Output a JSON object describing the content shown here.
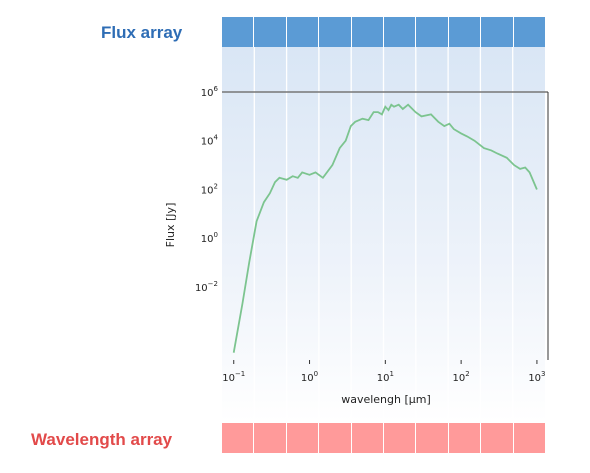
{
  "flux_label": "Flux array",
  "wavelength_label": "Wavelength array",
  "colors": {
    "flux_accent": "#2e6db5",
    "flux_cells": "#5b9bd5",
    "wavelength_accent": "#e24a4a",
    "wavelength_cells": "#ff9a9a",
    "curve": "#7cc48f"
  },
  "flux_array_cells": 10,
  "wavelength_array_cells": 10,
  "chart_data": {
    "type": "line",
    "xscale": "log",
    "yscale": "log",
    "xlim": [
      0.07,
      1400
    ],
    "ylim": [
      1e-05,
      1000000
    ],
    "xlabel": "wavelengh [μm]",
    "ylabel": "Flux [Jy]",
    "x_ticks": [
      "10^-1",
      "10^0",
      "10^1",
      "10^2",
      "10^3"
    ],
    "y_ticks": [
      "10^-2",
      "10^0",
      "10^2",
      "10^4",
      "10^6"
    ],
    "series": [
      {
        "x": [
          0.1,
          0.13,
          0.16,
          0.2,
          0.25,
          0.3,
          0.35,
          0.4,
          0.5,
          0.6,
          0.7,
          0.8,
          1.0,
          1.2,
          1.5,
          2,
          2.5,
          3,
          3.5,
          4,
          5,
          6,
          7,
          8,
          9,
          10,
          11,
          12,
          13,
          15,
          17,
          20,
          25,
          30,
          40,
          50,
          60,
          70,
          80,
          100,
          120,
          150,
          200,
          250,
          300,
          400,
          500,
          600,
          700,
          800,
          1000
        ],
        "y": [
          2e-05,
          0.002,
          0.1,
          5,
          30,
          70,
          200,
          300,
          250,
          350,
          300,
          500,
          400,
          500,
          300,
          1000,
          5000,
          10000,
          40000,
          60000,
          80000,
          70000,
          150000,
          150000,
          120000,
          250000,
          180000,
          300000,
          250000,
          300000,
          200000,
          300000,
          150000,
          100000,
          120000,
          60000,
          40000,
          50000,
          30000,
          20000,
          15000,
          10000,
          5000,
          4000,
          3000,
          2000,
          1000,
          700,
          800,
          500,
          100
        ]
      }
    ]
  }
}
